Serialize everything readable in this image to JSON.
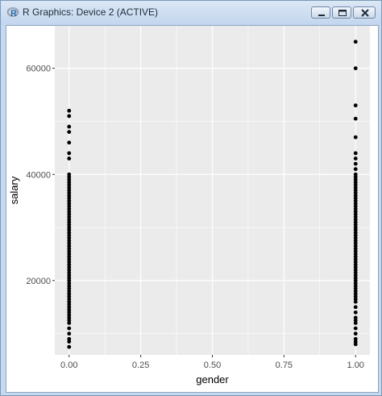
{
  "window": {
    "title": "R Graphics: Device 2 (ACTIVE)",
    "icon": "r-logo-icon",
    "controls": [
      "minimize-icon",
      "maximize-icon",
      "close-icon"
    ]
  },
  "colors": {
    "panel_background": "#ebebeb",
    "grid_major": "#ffffff",
    "point": "#000000"
  },
  "chart_data": {
    "type": "scatter",
    "title": "",
    "xlabel": "gender",
    "ylabel": "salary",
    "xlim": [
      -0.05,
      1.05
    ],
    "ylim": [
      6000,
      68000
    ],
    "x_ticks": [
      "0.00",
      "0.25",
      "0.50",
      "0.75",
      "1.00"
    ],
    "x_tick_values": [
      0,
      0.25,
      0.5,
      0.75,
      1
    ],
    "y_ticks": [
      "20000",
      "40000",
      "60000"
    ],
    "y_tick_values": [
      20000,
      40000,
      60000
    ],
    "grid": true,
    "series": [
      {
        "x": 0,
        "y": [
          52000,
          51000,
          49000,
          48000,
          46000,
          44000,
          43000,
          40000,
          39500,
          39000,
          38500,
          38000,
          37500,
          37000,
          36500,
          36000,
          35500,
          35000,
          34500,
          34000,
          33500,
          33000,
          32500,
          32000,
          31500,
          31000,
          30500,
          30000,
          29500,
          29000,
          28500,
          28000,
          27500,
          27000,
          26500,
          26000,
          25500,
          25000,
          24500,
          24000,
          23500,
          23000,
          22500,
          22000,
          21500,
          21000,
          20500,
          20000,
          19500,
          19000,
          18500,
          18000,
          17500,
          17000,
          16500,
          16000,
          15500,
          15000,
          14500,
          14000,
          13500,
          13000,
          12500,
          12000,
          11000,
          10000,
          9000,
          8500,
          7500
        ]
      },
      {
        "x": 1,
        "y": [
          65000,
          60000,
          53000,
          50500,
          47000,
          44000,
          43000,
          42000,
          41000,
          40000,
          39500,
          39000,
          38500,
          38000,
          37500,
          37000,
          36500,
          36000,
          35500,
          35000,
          34500,
          34000,
          33500,
          33000,
          32500,
          32000,
          31500,
          31000,
          30500,
          30000,
          29500,
          29000,
          28500,
          28000,
          27500,
          27000,
          26500,
          26000,
          25500,
          25000,
          24500,
          24000,
          23500,
          23000,
          22500,
          22000,
          21500,
          21000,
          20500,
          20000,
          19500,
          19000,
          18500,
          18000,
          17500,
          17000,
          16500,
          16000,
          15000,
          14000,
          13000,
          12500,
          12000,
          11000,
          10000,
          9000,
          8500,
          8000
        ]
      }
    ]
  }
}
